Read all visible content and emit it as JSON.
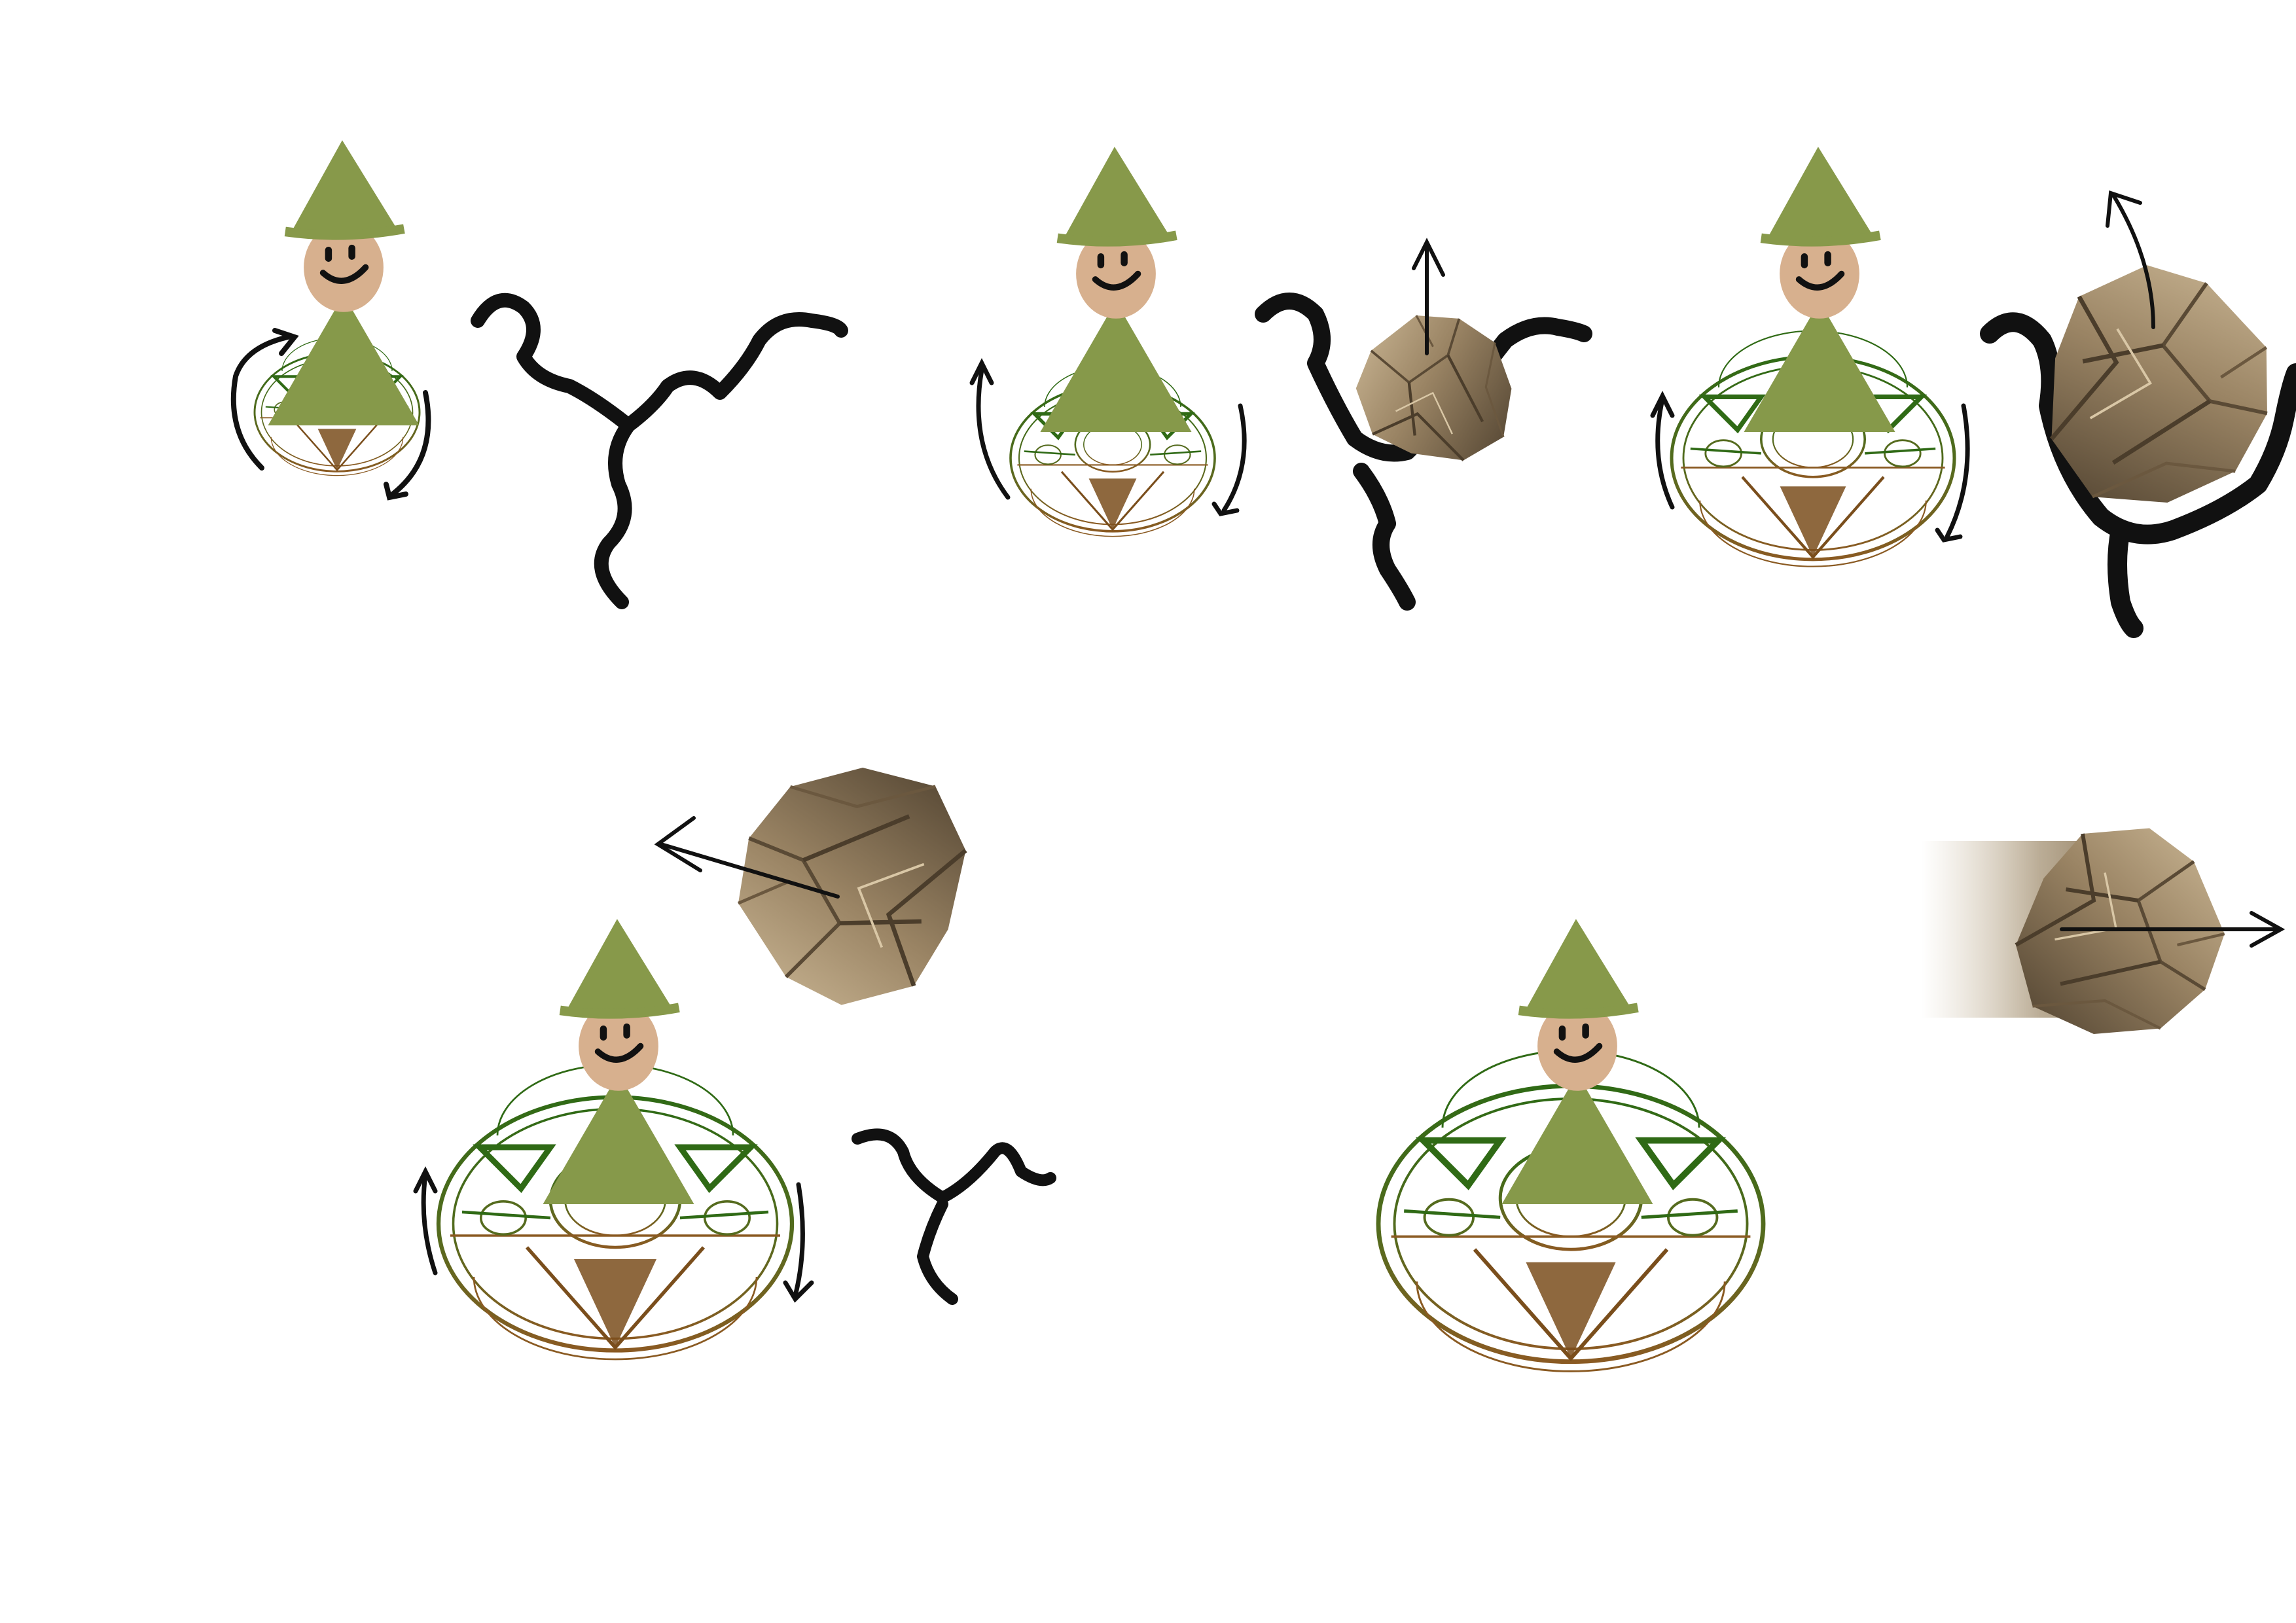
{
  "document": {
    "type": "storyboard",
    "panels": [
      {
        "id": 1,
        "scene": "gnome-begins-casting",
        "circle_stage": "small",
        "ground_crack": "forming",
        "rock": "none",
        "motion_arrows": [
          "circular-left",
          "circular-right"
        ]
      },
      {
        "id": 2,
        "scene": "rock-emerges-from-crack",
        "circle_stage": "medium",
        "ground_crack": "open",
        "rock": "emerging",
        "motion_arrows": [
          "circular-left",
          "circular-right",
          "up"
        ]
      },
      {
        "id": 3,
        "scene": "rock-rises",
        "circle_stage": "large",
        "ground_crack": "wide",
        "rock": "rising",
        "motion_arrows": [
          "circular-left",
          "circular-right",
          "up"
        ]
      },
      {
        "id": 4,
        "scene": "rock-hovers-overhead",
        "circle_stage": "large",
        "ground_crack": "closing",
        "rock": "floating",
        "motion_arrows": [
          "circular-left",
          "circular-right",
          "back"
        ]
      },
      {
        "id": 5,
        "scene": "rock-launched",
        "circle_stage": "full",
        "ground_crack": "none",
        "rock": "flying-right",
        "motion_arrows": [
          "right"
        ]
      }
    ]
  },
  "colors": {
    "hat": "#87994a",
    "robe": "#86994a",
    "face": "#d7b08e",
    "circle_green": "#2f6a15",
    "circle_brown": "#8a5a22",
    "ink": "#111111",
    "rock_light": "#c7b394",
    "rock_mid": "#8f7a5c",
    "rock_dark": "#4f412f"
  }
}
